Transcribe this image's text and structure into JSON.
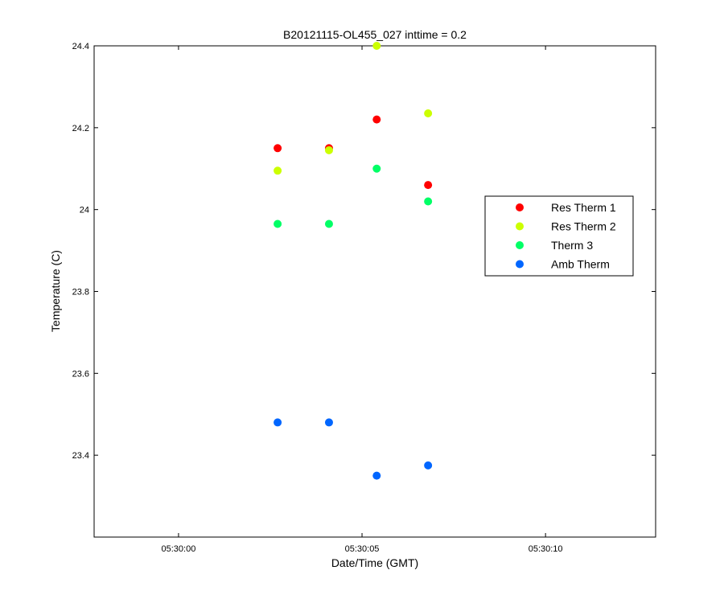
{
  "chart_data": {
    "type": "scatter",
    "title": "B20121115-OL455_027 inttime = 0.2",
    "xlabel": "Date/Time (GMT)",
    "ylabel": "Temperature (C)",
    "xlim": [
      "05:29:57.7",
      "05:30:13.0"
    ],
    "ylim": [
      23.2,
      24.4
    ],
    "xticks": [
      "05:30:00",
      "05:30:05",
      "05:30:10"
    ],
    "yticks": [
      23.4,
      23.6,
      23.8,
      24,
      24.2,
      24.4
    ],
    "ytick_labels": [
      "23.4",
      "23.6",
      "23.8",
      "24",
      "24.2",
      "24.4"
    ],
    "grid": false,
    "legend_position": "right",
    "x": [
      "05:30:02.7",
      "05:30:04.1",
      "05:30:05.4",
      "05:30:06.8"
    ],
    "series": [
      {
        "name": "Res Therm 1",
        "color": "#ff0000",
        "values": [
          24.15,
          24.15,
          24.22,
          24.06
        ]
      },
      {
        "name": "Res Therm 2",
        "color": "#ccff00",
        "values": [
          24.095,
          24.145,
          24.4,
          24.235
        ]
      },
      {
        "name": "Therm 3",
        "color": "#00ff66",
        "values": [
          23.965,
          23.965,
          24.1,
          24.02
        ]
      },
      {
        "name": "Amb Therm",
        "color": "#0066ff",
        "values": [
          23.48,
          23.48,
          23.35,
          23.375
        ]
      }
    ]
  }
}
